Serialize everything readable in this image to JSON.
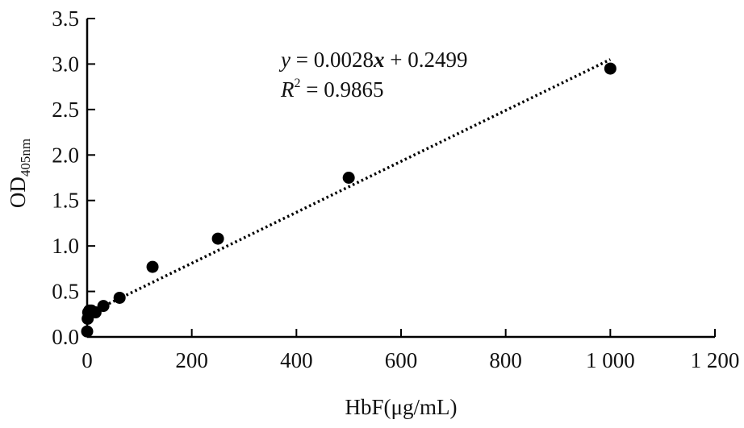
{
  "chart_data": {
    "type": "scatter",
    "xlabel": "HbF(μg/mL)",
    "ylabel": "OD",
    "ylabel_subscript": "405nm",
    "xlim": [
      0,
      1200
    ],
    "ylim": [
      0,
      3.5
    ],
    "x_ticks": [
      0,
      200,
      400,
      600,
      800,
      1000,
      1200
    ],
    "x_tick_labels": [
      "0",
      "200",
      "400",
      "600",
      "800",
      "1 000",
      "1 200"
    ],
    "y_ticks": [
      0,
      0.5,
      1.0,
      1.5,
      2.0,
      2.5,
      3.0,
      3.5
    ],
    "y_tick_labels": [
      "0.0",
      "0.5",
      "1.0",
      "1.5",
      "2.0",
      "2.5",
      "3.0",
      "3.5"
    ],
    "grid": false,
    "series": [
      {
        "marker": "filled-circle",
        "color": "#000000",
        "points": [
          {
            "x": 0,
            "y": 0.06
          },
          {
            "x": 1,
            "y": 0.2
          },
          {
            "x": 2,
            "y": 0.27
          },
          {
            "x": 4,
            "y": 0.29
          },
          {
            "x": 8,
            "y": 0.29
          },
          {
            "x": 16,
            "y": 0.27
          },
          {
            "x": 31,
            "y": 0.34
          },
          {
            "x": 62,
            "y": 0.43
          },
          {
            "x": 125,
            "y": 0.77
          },
          {
            "x": 250,
            "y": 1.08
          },
          {
            "x": 500,
            "y": 1.75
          },
          {
            "x": 1000,
            "y": 2.95
          }
        ]
      }
    ],
    "trendline": {
      "style": "dotted",
      "color": "#000000",
      "slope": 0.0028,
      "intercept": 0.2499,
      "x_range": [
        0,
        1000
      ],
      "equation": {
        "y_var": "y",
        "eq_rest": " = 0.0028",
        "x_var": "x",
        "eq_tail": " + 0.2499"
      },
      "r_squared": {
        "r_var": "R",
        "sup": "2",
        "eq_rest": " = 0.9865"
      }
    }
  }
}
